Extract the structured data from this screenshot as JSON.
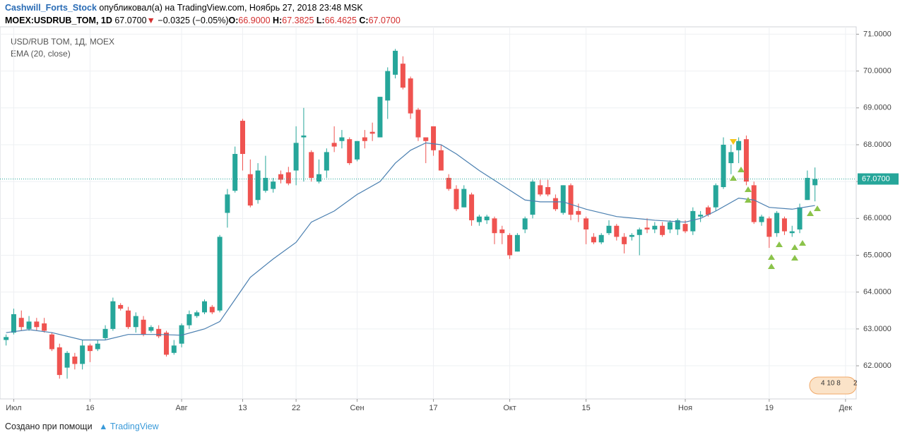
{
  "header": {
    "author": "Cashwill_Forts_Stock",
    "published": "опубликовал(а) на TradingView.com, Ноябрь 27, 2018 23:48 MSK",
    "symbol": "MOEX:USDRUB_TOM, 1D",
    "price": "67.0700",
    "arrow": "▼",
    "change": "−0.0325 (−0.05%)",
    "o_label": "O:",
    "o": "66.9000",
    "h_label": "H:",
    "h": "67.3825",
    "l_label": "L:",
    "l": "66.4625",
    "c_label": "C:",
    "c": "67.0700"
  },
  "footer": {
    "created": "Создано при помощи",
    "brand": "TradingView"
  },
  "chart_data": {
    "type": "candlestick",
    "last_price": {
      "value": 67.07,
      "label": "67.0700"
    },
    "badge": [
      "4 10 8",
      "2"
    ],
    "xlim": [
      -0.8,
      111.4
    ],
    "ylim": [
      61.1,
      71.2
    ],
    "xticks": [
      {
        "value": 1,
        "label": "Июл"
      },
      {
        "value": 11,
        "label": "16"
      },
      {
        "value": 23,
        "label": "Авг"
      },
      {
        "value": 31,
        "label": "13"
      },
      {
        "value": 38,
        "label": "22"
      },
      {
        "value": 46,
        "label": "Сен"
      },
      {
        "value": 56,
        "label": "17"
      },
      {
        "value": 66,
        "label": "Окт"
      },
      {
        "value": 76,
        "label": "15"
      },
      {
        "value": 89,
        "label": "Ноя"
      },
      {
        "value": 100,
        "label": "19"
      },
      {
        "value": 110,
        "label": "Дек"
      }
    ],
    "yticks": [
      {
        "value": 62,
        "label": "62.0000"
      },
      {
        "value": 63,
        "label": "63.0000"
      },
      {
        "value": 64,
        "label": "64.0000"
      },
      {
        "value": 65,
        "label": "65.0000"
      },
      {
        "value": 66,
        "label": "66.0000"
      },
      {
        "value": 67,
        "label": "67.0000"
      },
      {
        "value": 68,
        "label": "68.0000"
      },
      {
        "value": 69,
        "label": "69.0000"
      },
      {
        "value": 70,
        "label": "70.0000"
      },
      {
        "value": 71,
        "label": "71.0000"
      }
    ],
    "grid": true,
    "series": [
      {
        "name": "USD/RUB TOM, 1Д, MOEX",
        "up_color": "#26a69a",
        "down_color": "#ef5350",
        "x": [
          0,
          1,
          2,
          3,
          4,
          5,
          6,
          7,
          8,
          9,
          10,
          11,
          12,
          13,
          14,
          15,
          16,
          17,
          18,
          19,
          20,
          21,
          22,
          23,
          24,
          25,
          26,
          27,
          28,
          29,
          30,
          31,
          32,
          33,
          34,
          35,
          36,
          37,
          38,
          39,
          40,
          41,
          42,
          43,
          44,
          45,
          46,
          47,
          48,
          49,
          50,
          51,
          52,
          53,
          54,
          55,
          56,
          57,
          58,
          59,
          60,
          61,
          62,
          63,
          64,
          65,
          66,
          67,
          68,
          69,
          70,
          71,
          72,
          73,
          74,
          75,
          76,
          77,
          78,
          79,
          80,
          81,
          82,
          83,
          84,
          85,
          86,
          87,
          88,
          89,
          90,
          91,
          92,
          93,
          94,
          95,
          96,
          97,
          98,
          99,
          100,
          101,
          102,
          103,
          104,
          105,
          106
        ],
        "open": [
          62.7,
          62.9,
          63.3,
          63.0,
          63.2,
          63.15,
          62.85,
          62.5,
          61.95,
          62.25,
          62.05,
          62.55,
          62.45,
          62.75,
          63.0,
          63.65,
          63.5,
          63.05,
          63.25,
          62.95,
          63.0,
          62.9,
          62.35,
          62.6,
          63.1,
          63.35,
          63.45,
          63.6,
          63.5,
          66.15,
          66.75,
          68.65,
          67.2,
          66.5,
          66.75,
          66.8,
          67.2,
          67.25,
          67.3,
          68.2,
          67.8,
          67.0,
          67.3,
          68.05,
          68.1,
          68.15,
          67.6,
          68.2,
          68.35,
          68.2,
          69.2,
          69.9,
          70.2,
          69.8,
          68.95,
          68.2,
          68.5,
          67.85,
          67.1,
          66.8,
          66.3,
          66.65,
          65.9,
          65.95,
          66.0,
          65.7,
          65.55,
          65.1,
          65.7,
          66.1,
          66.9,
          66.85,
          66.55,
          66.15,
          66.9,
          66.2,
          66.0,
          65.5,
          65.35,
          65.6,
          65.8,
          65.5,
          65.5,
          65.55,
          65.75,
          65.7,
          65.8,
          65.7,
          65.7,
          65.85,
          65.65,
          66.05,
          66.3,
          66.3,
          66.85,
          67.5,
          67.85,
          68.15,
          66.9,
          65.9,
          66.0,
          65.6,
          66.0,
          65.6,
          65.7,
          66.5,
          66.9
        ],
        "high": [
          62.85,
          63.55,
          63.5,
          63.35,
          63.3,
          63.3,
          62.9,
          62.6,
          62.4,
          62.35,
          62.7,
          62.6,
          62.7,
          63.1,
          63.85,
          63.7,
          63.6,
          63.45,
          63.35,
          63.1,
          63.1,
          62.95,
          62.7,
          63.15,
          63.5,
          63.5,
          63.8,
          63.65,
          65.55,
          66.8,
          67.95,
          68.7,
          67.6,
          67.5,
          67.7,
          67.1,
          67.3,
          67.4,
          68.5,
          69.0,
          67.85,
          67.6,
          67.9,
          68.5,
          68.4,
          68.2,
          68.1,
          68.4,
          68.6,
          69.3,
          70.1,
          70.6,
          70.4,
          69.85,
          69.0,
          68.2,
          68.5,
          68.0,
          67.2,
          66.9,
          66.9,
          66.7,
          66.1,
          66.1,
          66.05,
          65.8,
          65.6,
          65.6,
          66.05,
          67.05,
          67.05,
          67.05,
          66.65,
          66.9,
          66.95,
          66.4,
          66.05,
          65.6,
          65.6,
          65.95,
          65.85,
          65.6,
          65.6,
          65.75,
          66.0,
          65.9,
          65.9,
          65.95,
          66.0,
          65.95,
          66.3,
          66.2,
          66.35,
          66.95,
          68.2,
          68.0,
          68.2,
          68.25,
          67.0,
          66.1,
          66.05,
          66.2,
          66.05,
          65.8,
          66.4,
          67.3,
          67.3825
        ],
        "low": [
          62.55,
          62.85,
          62.95,
          62.95,
          62.95,
          62.9,
          62.4,
          61.65,
          61.65,
          61.9,
          61.9,
          62.1,
          62.4,
          62.7,
          62.95,
          63.5,
          63.0,
          62.9,
          62.8,
          62.9,
          62.75,
          62.25,
          62.3,
          62.5,
          63.0,
          63.3,
          63.4,
          63.4,
          63.45,
          65.75,
          66.7,
          67.3,
          66.3,
          66.4,
          66.7,
          66.7,
          66.95,
          66.9,
          66.9,
          67.0,
          67.0,
          66.95,
          67.1,
          67.8,
          67.9,
          67.45,
          67.55,
          67.9,
          68.1,
          68.2,
          68.7,
          69.8,
          69.5,
          68.7,
          68.1,
          67.5,
          67.7,
          67.3,
          66.75,
          66.2,
          66.3,
          65.8,
          65.8,
          65.85,
          65.3,
          65.3,
          64.9,
          65.1,
          65.6,
          66.0,
          66.6,
          66.6,
          66.2,
          66.1,
          65.95,
          65.9,
          65.3,
          65.3,
          65.3,
          65.55,
          65.4,
          65.05,
          65.4,
          65.0,
          65.6,
          65.6,
          65.5,
          65.6,
          65.55,
          65.6,
          65.55,
          65.9,
          66.05,
          66.2,
          66.8,
          67.2,
          67.5,
          66.9,
          65.85,
          65.8,
          65.2,
          65.5,
          65.55,
          65.5,
          65.6,
          66.5,
          66.4625
        ],
        "close": [
          62.78,
          63.4,
          63.05,
          63.2,
          63.05,
          62.95,
          62.45,
          61.75,
          62.35,
          62.05,
          62.55,
          62.4,
          62.6,
          63.0,
          63.75,
          63.55,
          63.05,
          63.35,
          62.85,
          63.05,
          62.8,
          62.3,
          62.55,
          63.1,
          63.4,
          63.45,
          63.75,
          63.45,
          65.5,
          66.65,
          67.75,
          67.75,
          66.35,
          67.3,
          67.1,
          67.0,
          67.05,
          66.95,
          68.05,
          68.25,
          67.1,
          67.2,
          67.8,
          67.95,
          68.2,
          67.5,
          68.1,
          68.1,
          68.3,
          69.3,
          70.0,
          70.55,
          69.55,
          68.85,
          68.2,
          68.1,
          67.85,
          67.3,
          66.8,
          66.25,
          66.8,
          65.95,
          66.05,
          66.05,
          65.6,
          65.6,
          65.0,
          65.55,
          66.0,
          67.0,
          66.65,
          66.65,
          66.25,
          66.9,
          66.1,
          66.1,
          65.7,
          65.35,
          65.55,
          65.8,
          65.5,
          65.3,
          65.55,
          65.7,
          65.7,
          65.8,
          65.55,
          65.9,
          65.95,
          65.65,
          66.2,
          66.1,
          66.1,
          66.9,
          68.0,
          67.8,
          68.1,
          67.0,
          65.9,
          66.05,
          65.5,
          66.15,
          65.65,
          65.65,
          66.3,
          67.1,
          67.07
        ]
      },
      {
        "name": "EMA (20, close)",
        "color": "#4a7fb0",
        "x": [
          0,
          3,
          6,
          10,
          13,
          16,
          20,
          23,
          26,
          28,
          30,
          32,
          35,
          38,
          40,
          43,
          46,
          49,
          51,
          53,
          55,
          57,
          59,
          62,
          65,
          68,
          70,
          73,
          76,
          80,
          85,
          89,
          91,
          93,
          96,
          98,
          100,
          103,
          106
        ],
        "values": [
          62.9,
          62.98,
          62.9,
          62.7,
          62.7,
          62.85,
          62.85,
          62.83,
          63.0,
          63.2,
          63.8,
          64.4,
          64.9,
          65.35,
          65.9,
          66.2,
          66.65,
          67.0,
          67.5,
          67.85,
          68.05,
          68.0,
          67.75,
          67.3,
          66.9,
          66.5,
          66.45,
          66.45,
          66.25,
          66.05,
          65.95,
          65.9,
          66.0,
          66.2,
          66.55,
          66.5,
          66.3,
          66.25,
          66.35
        ]
      }
    ]
  }
}
